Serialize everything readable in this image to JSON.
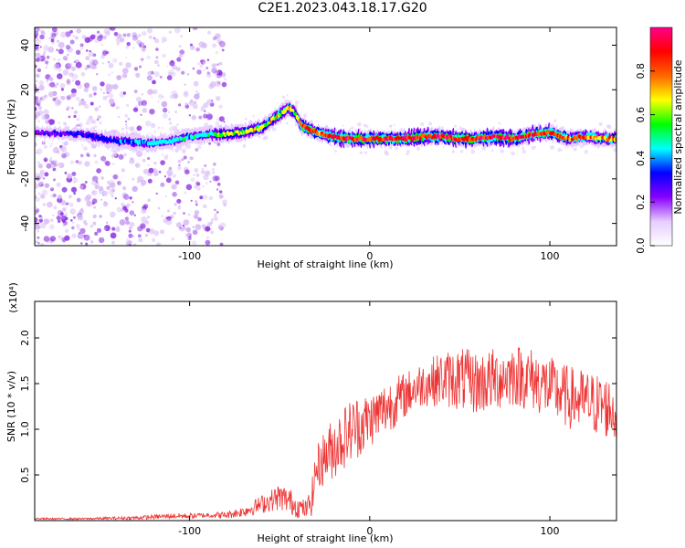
{
  "title": "C2E1.2023.043.18.17.G20",
  "chart_data": [
    {
      "type": "heatmap",
      "name": "spectrogram",
      "xlabel": "Height of straight line (km)",
      "ylabel": "Frequency (Hz)",
      "xlim": [
        -186,
        137
      ],
      "ylim": [
        -50,
        48
      ],
      "x_ticks": [
        -100,
        0,
        100
      ],
      "y_ticks": [
        -40,
        -20,
        0,
        20,
        40
      ],
      "grid": false,
      "colorbar": {
        "label": "Normalized spectral amplitude",
        "range": [
          0,
          1
        ],
        "ticks": [
          "0.0",
          "0.2",
          "0.4",
          "0.6",
          "0.8"
        ],
        "colors": [
          "#ffffff",
          "#e6ccff",
          "#8800ff",
          "#0000ff",
          "#00ffff",
          "#00ff00",
          "#ffff00",
          "#ff6600",
          "#ff0000",
          "#ff0088"
        ]
      },
      "ridge": {
        "x": [
          -186,
          -160,
          -140,
          -120,
          -110,
          -100,
          -90,
          -80,
          -70,
          -60,
          -55,
          -50,
          -45,
          -42,
          -38,
          -35,
          -30,
          -25,
          -20,
          -10,
          0,
          10,
          20,
          30,
          40,
          50,
          60,
          70,
          80,
          90,
          100,
          110,
          120,
          130,
          137
        ],
        "y": [
          1,
          0,
          -3,
          -4,
          -3,
          -1,
          0,
          0,
          1,
          3,
          6,
          9,
          12,
          10,
          4,
          3,
          1,
          0,
          -1,
          -2,
          -2,
          -2,
          -2,
          -1,
          -1,
          -2,
          -2,
          -1,
          -2,
          0,
          1,
          -2,
          -1,
          -2,
          -2
        ],
        "amplitude": [
          0.25,
          0.3,
          0.35,
          0.45,
          0.45,
          0.45,
          0.45,
          0.6,
          0.65,
          0.65,
          0.65,
          0.65,
          0.7,
          0.65,
          0.8,
          0.9,
          0.85,
          0.8,
          0.85,
          0.9,
          0.9,
          0.9,
          0.9,
          0.9,
          0.9,
          0.9,
          0.9,
          0.9,
          0.9,
          0.85,
          0.85,
          0.8,
          0.75,
          0.75,
          0.75
        ]
      },
      "noise_region": {
        "x_range": [
          -186,
          -80
        ],
        "freq_range": [
          -50,
          48
        ]
      }
    },
    {
      "type": "line",
      "name": "snr",
      "xlabel": "Height of straight line (km)",
      "ylabel": "SNR (10 * v/v)",
      "y_scale_label": "(x10⁴)",
      "xlim": [
        -186,
        137
      ],
      "ylim": [
        0,
        2.4
      ],
      "x_ticks": [
        -100,
        0,
        100
      ],
      "y_ticks": [
        0.5,
        1.0,
        1.5,
        2.0
      ],
      "grid": false,
      "series": [
        {
          "color": "#ee3333",
          "x": [
            -186,
            -160,
            -130,
            -110,
            -100,
            -90,
            -80,
            -70,
            -60,
            -55,
            -50,
            -45,
            -40,
            -35,
            -32,
            -30,
            -25,
            -20,
            -15,
            -10,
            -5,
            0,
            10,
            20,
            25,
            30,
            40,
            50,
            60,
            70,
            80,
            90,
            100,
            110,
            120,
            130,
            137
          ],
          "y": [
            0.02,
            0.02,
            0.03,
            0.05,
            0.05,
            0.06,
            0.06,
            0.1,
            0.18,
            0.22,
            0.26,
            0.22,
            0.15,
            0.12,
            0.25,
            0.55,
            0.7,
            0.8,
            0.9,
            1.0,
            1.05,
            1.1,
            1.25,
            1.38,
            1.45,
            1.5,
            1.55,
            1.55,
            1.5,
            1.55,
            1.6,
            1.55,
            1.45,
            1.35,
            1.3,
            1.25,
            1.2
          ],
          "spread": [
            0.01,
            0.01,
            0.02,
            0.03,
            0.03,
            0.03,
            0.04,
            0.06,
            0.1,
            0.12,
            0.15,
            0.15,
            0.12,
            0.1,
            0.2,
            0.25,
            0.3,
            0.35,
            0.35,
            0.35,
            0.35,
            0.3,
            0.3,
            0.25,
            0.25,
            0.25,
            0.3,
            0.35,
            0.35,
            0.35,
            0.35,
            0.35,
            0.35,
            0.35,
            0.35,
            0.35,
            0.35
          ]
        }
      ]
    }
  ]
}
